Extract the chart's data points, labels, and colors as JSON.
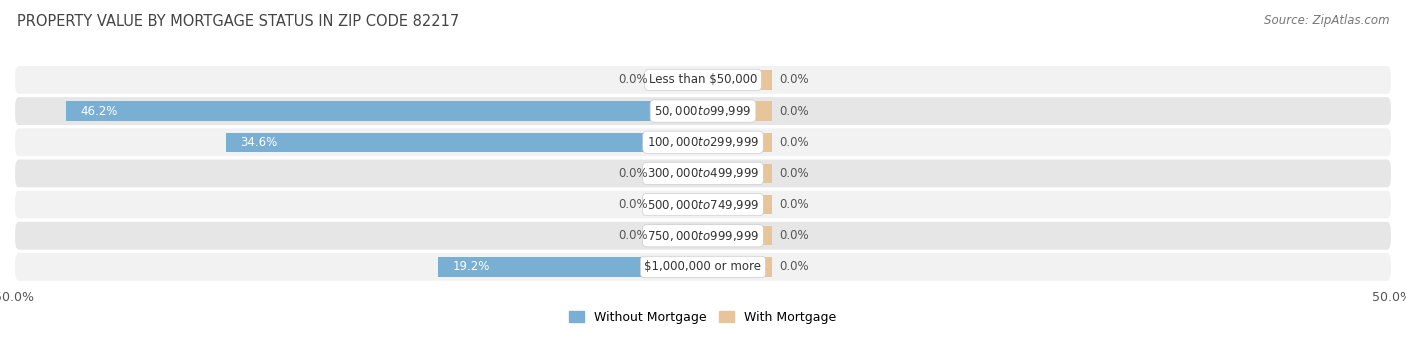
{
  "title": "PROPERTY VALUE BY MORTGAGE STATUS IN ZIP CODE 82217",
  "source": "Source: ZipAtlas.com",
  "categories": [
    "Less than $50,000",
    "$50,000 to $99,999",
    "$100,000 to $299,999",
    "$300,000 to $499,999",
    "$500,000 to $749,999",
    "$750,000 to $999,999",
    "$1,000,000 or more"
  ],
  "without_mortgage": [
    0.0,
    46.2,
    34.6,
    0.0,
    0.0,
    0.0,
    19.2
  ],
  "with_mortgage": [
    0.0,
    0.0,
    0.0,
    0.0,
    0.0,
    0.0,
    0.0
  ],
  "color_without": "#7aafd4",
  "color_with": "#e8c49a",
  "color_without_stub": "#a8c8e8",
  "bar_height": 0.62,
  "xlim": 50.0,
  "row_bg_light": "#f2f2f2",
  "row_bg_dark": "#e6e6e6",
  "title_fontsize": 10.5,
  "source_fontsize": 8.5,
  "label_fontsize": 8.5,
  "category_fontsize": 8.5,
  "legend_fontsize": 9,
  "axis_label_fontsize": 9,
  "stub_size": 3.5,
  "with_stub_size": 5.0
}
